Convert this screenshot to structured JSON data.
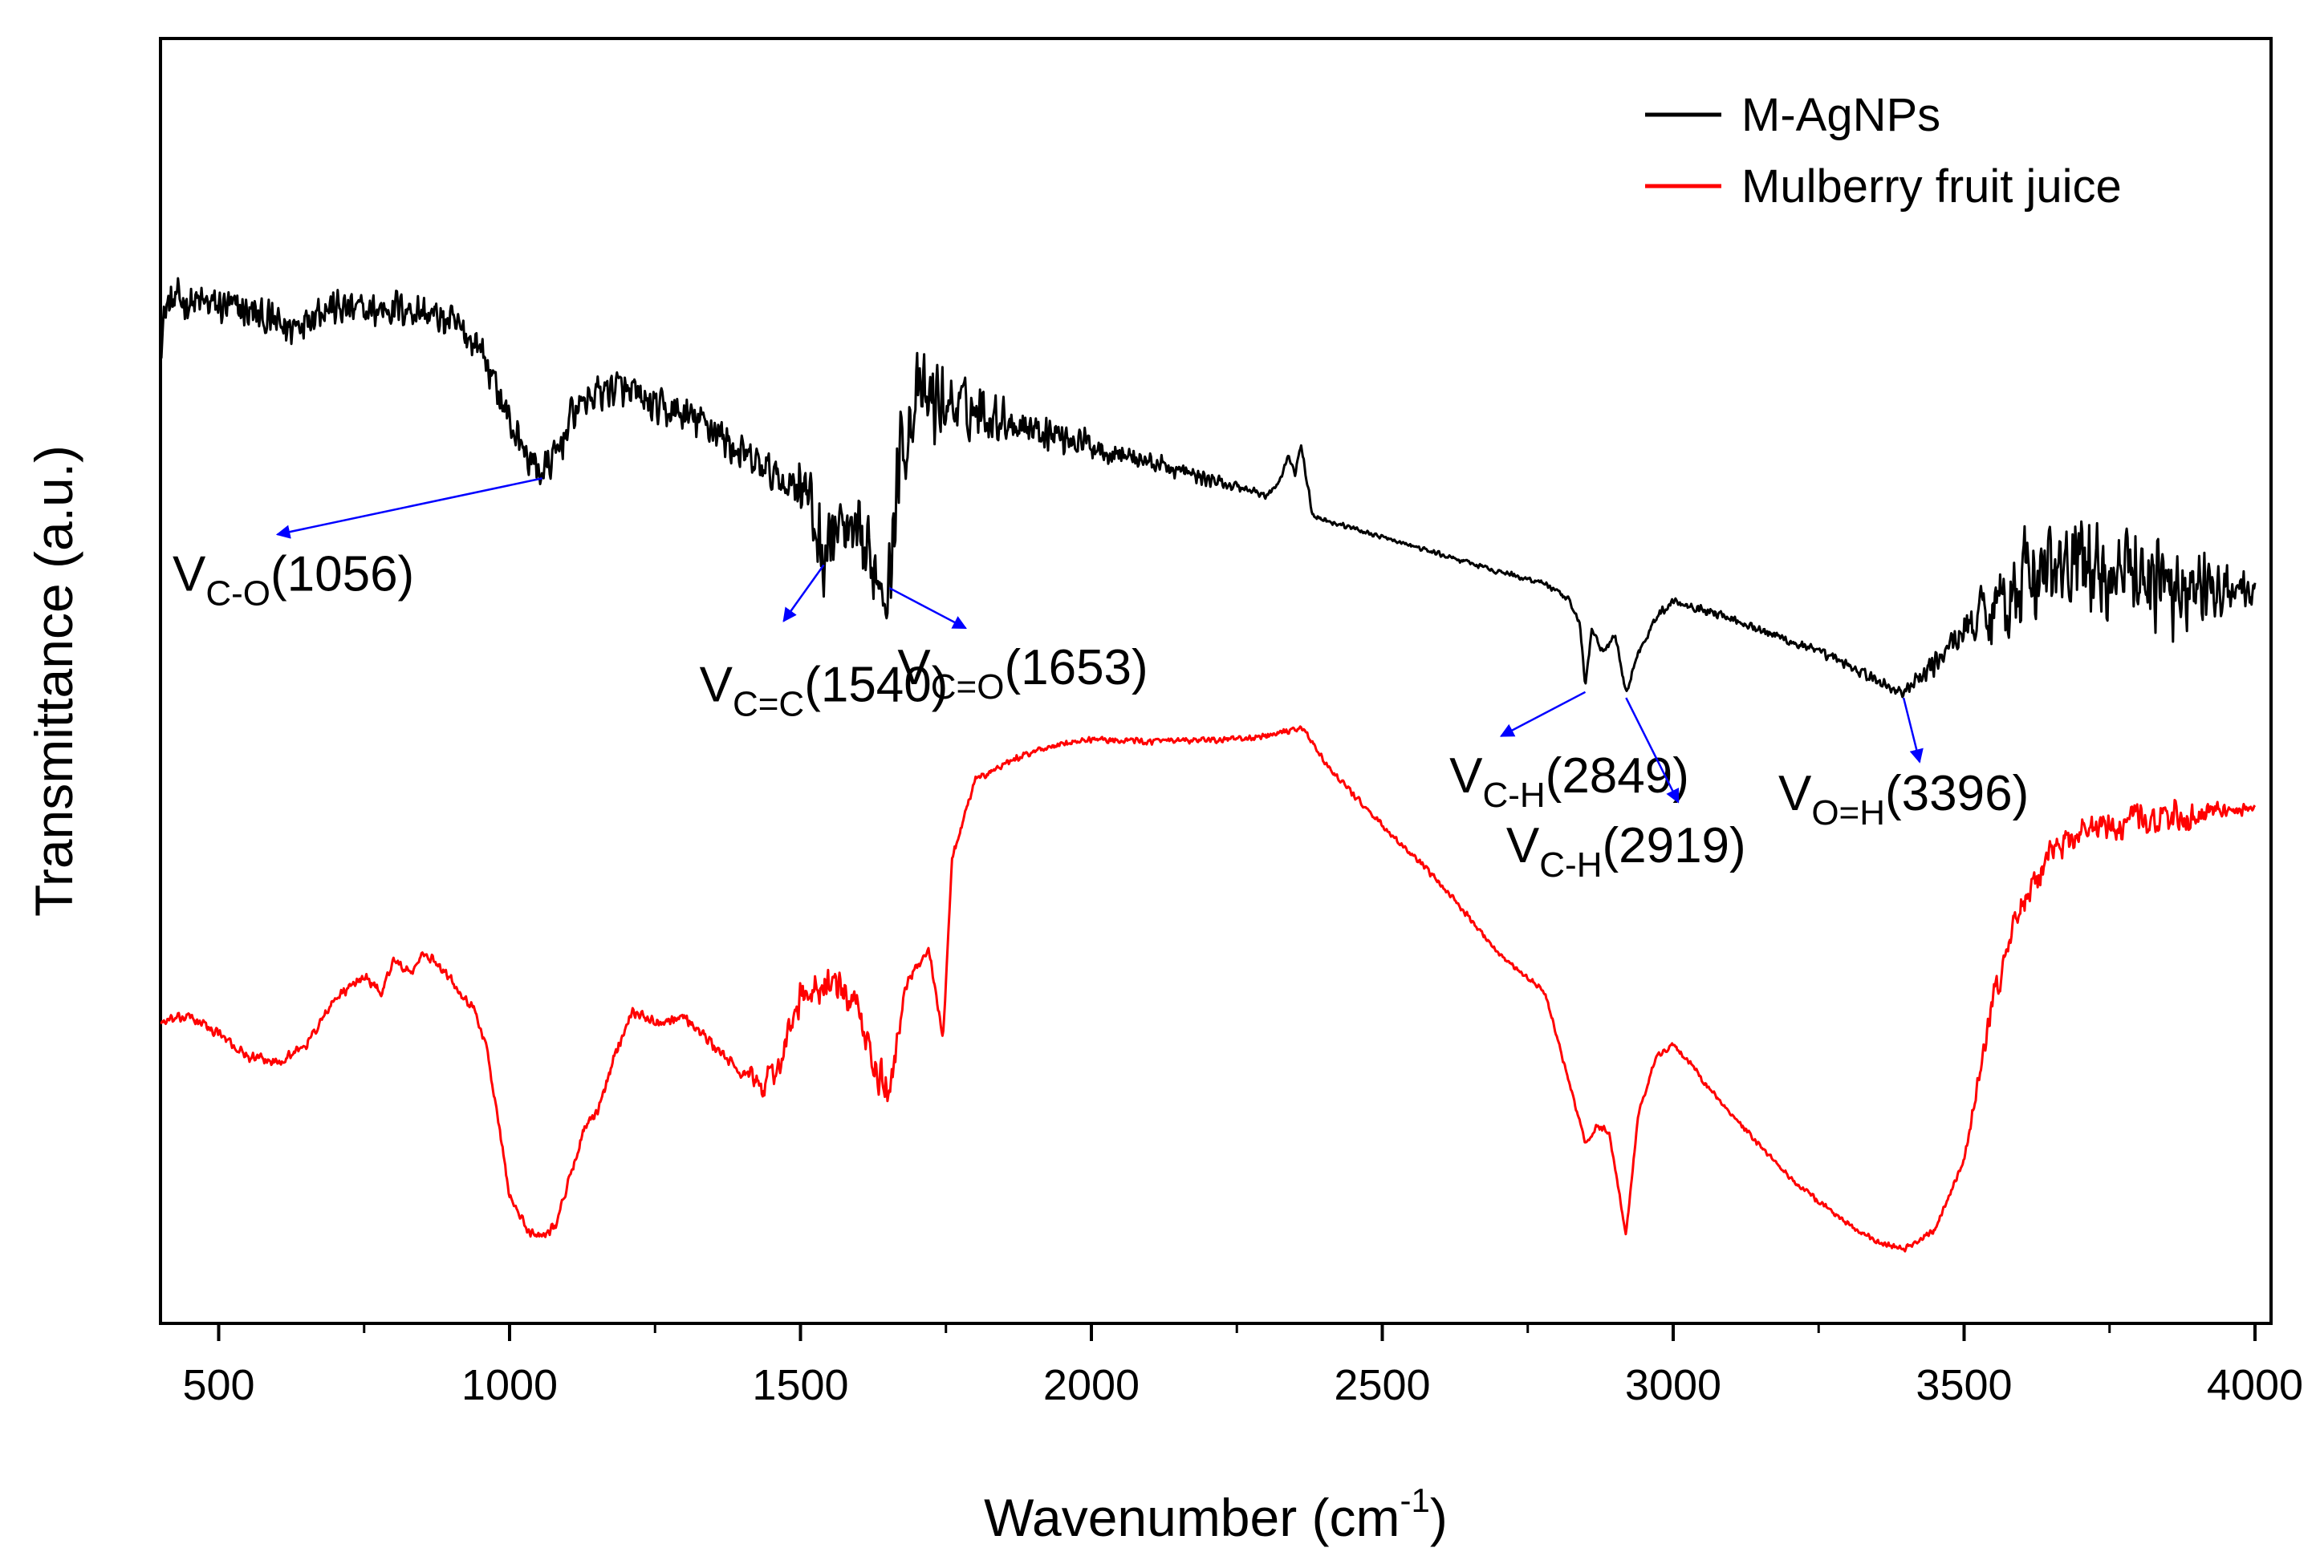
{
  "chart_data": {
    "type": "line",
    "title": "",
    "xlabel": "Wavenumber (cm",
    "xlabel_sup": "-1",
    "xlabel_close": ")",
    "ylabel": "Transmittance (a.u.)",
    "xlim": [
      400,
      4000
    ],
    "ylim": [
      0,
      100
    ],
    "y_ticks_visible": false,
    "grid": false,
    "legend_position": "top-right",
    "x_major_ticks": [
      500,
      1000,
      1500,
      2000,
      2500,
      3000,
      3500,
      4000
    ],
    "x_tick_labels": [
      "500",
      "1000",
      "1500",
      "2000",
      "2500",
      "3000",
      "3500",
      "4000"
    ],
    "series": [
      {
        "name": "M-AgNPs",
        "color": "#000000",
        "noise": [
          [
            1480,
            2.0
          ],
          [
            1500,
            4.0
          ],
          [
            1700,
            4.5
          ],
          [
            1850,
            2.2
          ],
          [
            2100,
            1.0
          ],
          [
            2300,
            0.4
          ],
          [
            2500,
            0.2
          ],
          [
            3400,
            0.6
          ],
          [
            3500,
            2.0
          ],
          [
            3580,
            5.0
          ],
          [
            3880,
            5.0
          ],
          [
            4000,
            1.5
          ]
        ],
        "x": [
          400,
          410,
          430,
          500,
          550,
          620,
          660,
          680,
          700,
          760,
          800,
          850,
          900,
          950,
          1000,
          1030,
          1056,
          1080,
          1110,
          1150,
          1180,
          1220,
          1260,
          1300,
          1350,
          1400,
          1450,
          1480,
          1500,
          1520,
          1540,
          1560,
          1600,
          1653,
          1670,
          1700,
          1750,
          1800,
          1900,
          2000,
          2100,
          2200,
          2280,
          2300,
          2320,
          2340,
          2350,
          2360,
          2380,
          2400,
          2500,
          2600,
          2700,
          2780,
          2820,
          2840,
          2849,
          2860,
          2880,
          2900,
          2919,
          2940,
          2970,
          3000,
          3100,
          3200,
          3300,
          3350,
          3396,
          3450,
          3500,
          3600,
          3700,
          3800,
          3900,
          4000
        ],
        "y": [
          83,
          86,
          86.5,
          86,
          85.5,
          84,
          85.5,
          86,
          85.8,
          85.5,
          86,
          85.5,
          84.5,
          82.5,
          76,
          73,
          71.5,
          73,
          77,
          78.5,
          79,
          78,
          77,
          76.5,
          75.5,
          73,
          71.5,
          70.5,
          71.5,
          68,
          64,
          67,
          65,
          62,
          73,
          78,
          77.5,
          77,
          75.5,
          74,
          72.5,
          71,
          70,
          69.5,
          70.5,
          73,
          71.5,
          74,
          68,
          67.5,
          66,
          64.5,
          63,
          62,
          60.5,
          58.5,
          53,
          58,
          56,
          57.5,
          52.5,
          56,
          59,
          60.5,
          59,
          57,
          55,
          53.5,
          52.5,
          55,
          58,
          62.5,
          63.5,
          62.5,
          61.5,
          61
        ]
      },
      {
        "name": "Mulberry fruit juice",
        "color": "#ff0000",
        "noise": [
          [
            1400,
            0.5
          ],
          [
            1420,
            1.5
          ],
          [
            1650,
            2.0
          ],
          [
            1680,
            0.5
          ],
          [
            2000,
            0.3
          ],
          [
            3500,
            0.3
          ],
          [
            3550,
            1.5
          ],
          [
            3900,
            1.5
          ],
          [
            4000,
            0.4
          ]
        ],
        "x": [
          400,
          450,
          500,
          550,
          600,
          650,
          700,
          750,
          780,
          800,
          830,
          850,
          880,
          910,
          940,
          960,
          1000,
          1030,
          1056,
          1080,
          1100,
          1130,
          1150,
          1180,
          1210,
          1250,
          1300,
          1350,
          1400,
          1440,
          1460,
          1500,
          1550,
          1600,
          1630,
          1653,
          1680,
          1720,
          1745,
          1760,
          1800,
          1900,
          2000,
          2100,
          2200,
          2300,
          2340,
          2360,
          2380,
          2400,
          2500,
          2600,
          2700,
          2780,
          2820,
          2849,
          2870,
          2890,
          2919,
          2940,
          2970,
          3000,
          3020,
          3050,
          3100,
          3200,
          3300,
          3350,
          3396,
          3450,
          3500,
          3550,
          3600,
          3650,
          3700,
          3800,
          3900,
          4000
        ],
        "y": [
          24,
          24.5,
          23,
          21,
          20.5,
          22,
          26,
          28,
          26.5,
          29.5,
          28,
          30,
          29,
          27,
          25,
          22,
          9,
          6,
          5.5,
          6.5,
          10,
          15,
          16,
          21,
          25,
          24,
          24.5,
          22,
          19.5,
          18.5,
          20,
          26,
          27.5,
          25,
          19.5,
          18,
          27,
          30.5,
          22.5,
          38,
          45,
          47.5,
          48.5,
          48.3,
          48.4,
          48.7,
          49.2,
          49.5,
          48.3,
          46.5,
          41,
          36,
          30,
          26.5,
          19,
          13.5,
          15,
          14.5,
          5.5,
          16,
          21,
          22,
          21,
          19,
          16,
          10.5,
          6.5,
          5,
          4.3,
          6,
          12,
          26,
          34.5,
          38.5,
          40.5,
          41.5,
          42,
          42.5
        ]
      }
    ],
    "annotations": [
      {
        "label_main": "V",
        "label_sub": "C-O",
        "label_value": "(1056)",
        "peak_x": 1056,
        "peak_series": 0,
        "arrow_dx": -330,
        "arrow_dy": 70,
        "text_anchor": "end",
        "text_dx": 0,
        "text_dy": 140
      },
      {
        "label_main": "V",
        "label_sub": "C=C",
        "label_value": "(1540)",
        "peak_x": 1540,
        "peak_series": 0,
        "arrow_dx": -50,
        "arrow_dy": 70,
        "text_anchor": "middle",
        "text_dx": 0,
        "text_dy": 170
      },
      {
        "label_main": "V",
        "label_sub": "C=O",
        "label_value": "(1653)",
        "peak_x": 1653,
        "peak_series": 0,
        "arrow_dx": 95,
        "arrow_dy": 50,
        "text_anchor": "start",
        "text_dx": 10,
        "text_dy": 120
      },
      {
        "label_main": "V",
        "label_sub": "C-H",
        "label_value": "(2849)",
        "peak_x": 2849,
        "peak_series": 0,
        "arrow_dx": -105,
        "arrow_dy": 55,
        "text_anchor": "middle",
        "text_dx": -20,
        "text_dy": 125
      },
      {
        "label_main": "V",
        "label_sub": "C-H",
        "label_value": "(2919)",
        "peak_x": 2919,
        "peak_series": 0,
        "arrow_dx": 65,
        "arrow_dy": 130,
        "text_anchor": "middle",
        "text_dx": 0,
        "text_dy": 205
      },
      {
        "label_main": "V",
        "label_sub": "O=H",
        "label_value": "(3396)",
        "peak_x": 3396,
        "peak_series": 0,
        "arrow_dx": 20,
        "arrow_dy": 80,
        "text_anchor": "middle",
        "text_dx": 0,
        "text_dy": 140
      }
    ],
    "annotation_color": "#0000ff"
  }
}
